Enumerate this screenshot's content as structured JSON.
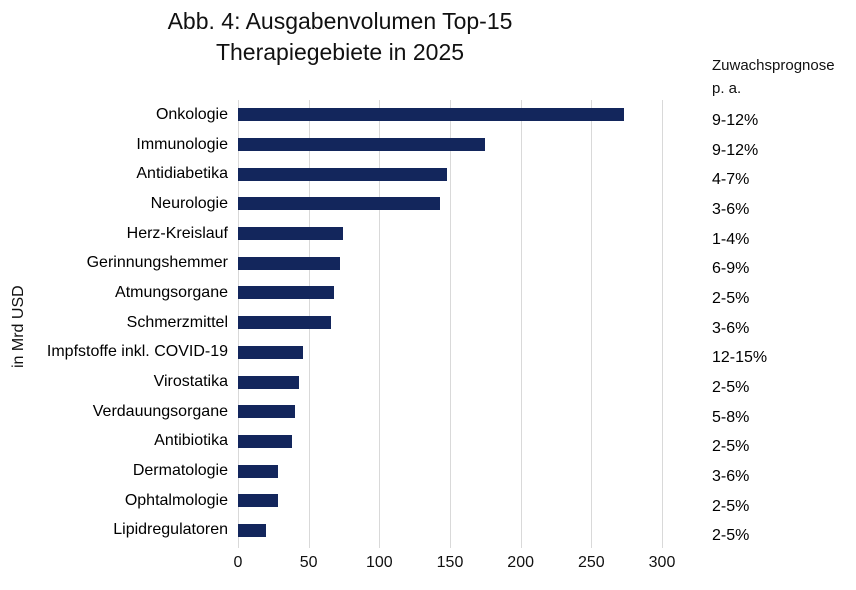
{
  "title": {
    "line1": "Abb. 4: Ausgabenvolumen Top-15",
    "line2": "Therapiegebiete in 2025"
  },
  "growth_header": {
    "line1": "Zuwachsprognose",
    "line2": "p. a."
  },
  "chart_data": {
    "type": "bar",
    "orientation": "horizontal",
    "title": "Abb. 4: Ausgabenvolumen Top-15 Therapiegebiete in 2025",
    "ylabel": "in Mrd USD",
    "x_ticks": [
      0,
      50,
      100,
      150,
      200,
      250,
      300
    ],
    "xlim": [
      0,
      300
    ],
    "grid": "vertical",
    "legend_position": "none",
    "bar_color": "#13265c",
    "gridline_color": "#d9d9d9",
    "categories": [
      "Onkologie",
      "Immunologie",
      "Antidiabetika",
      "Neurologie",
      "Herz-Kreislauf",
      "Gerinnungshemmer",
      "Atmungsorgane",
      "Schmerzmittel",
      "Impfstoffe inkl. COVID-19",
      "Virostatika",
      "Verdauungsorgane",
      "Antibiotika",
      "Dermatologie",
      "Ophtalmologie",
      "Lipidregulatoren"
    ],
    "values": [
      273,
      175,
      148,
      143,
      74,
      72,
      68,
      66,
      46,
      43,
      40,
      38,
      28,
      28,
      20
    ],
    "growth_forecast_pa": [
      "9-12%",
      "9-12%",
      "4-7%",
      "3-6%",
      "1-4%",
      "6-9%",
      "2-5%",
      "3-6%",
      "12-15%",
      "2-5%",
      "5-8%",
      "2-5%",
      "3-6%",
      "2-5%",
      "2-5%"
    ]
  }
}
